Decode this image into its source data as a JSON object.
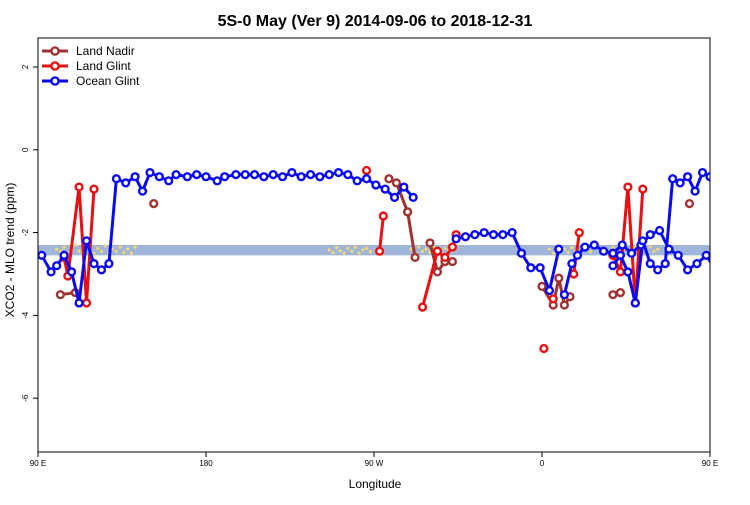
{
  "chart_data": {
    "type": "line",
    "title": "5S-0 May (Ver 9)   2014-09-06 to 2018-12-31",
    "xlabel": "Longitude",
    "ylabel": "XCO2 - MLO trend (ppm)",
    "xlim": [
      90,
      450
    ],
    "ylim": [
      -7.3,
      2.7
    ],
    "x_ticks": [
      {
        "value": 90,
        "label": "90 E"
      },
      {
        "value": 180,
        "label": "180"
      },
      {
        "value": 270,
        "label": "90 W"
      },
      {
        "value": 360,
        "label": "0"
      },
      {
        "value": 450,
        "label": "90 E"
      }
    ],
    "y_ticks": [
      {
        "value": 2,
        "label": "2"
      },
      {
        "value": 0,
        "label": "0"
      },
      {
        "value": -2,
        "label": "-2"
      },
      {
        "value": -4,
        "label": "-4"
      },
      {
        "value": -6,
        "label": "-6"
      }
    ],
    "legend_position": "top-left",
    "band": {
      "y_low": -2.55,
      "y_high": -2.3,
      "color": "#9fb6d8"
    },
    "background_points_color": "#f5d774",
    "background_points": [
      [
        100,
        -2.4
      ],
      [
        102,
        -2.45
      ],
      [
        104,
        -2.35
      ],
      [
        106,
        -2.5
      ],
      [
        108,
        -2.4
      ],
      [
        110,
        -2.3
      ],
      [
        112,
        -2.45
      ],
      [
        114,
        -2.5
      ],
      [
        116,
        -2.35
      ],
      [
        118,
        -2.42
      ],
      [
        120,
        -2.5
      ],
      [
        122,
        -2.38
      ],
      [
        124,
        -2.45
      ],
      [
        126,
        -2.32
      ],
      [
        128,
        -2.5
      ],
      [
        130,
        -2.4
      ],
      [
        132,
        -2.45
      ],
      [
        134,
        -2.35
      ],
      [
        136,
        -2.48
      ],
      [
        138,
        -2.4
      ],
      [
        140,
        -2.5
      ],
      [
        142,
        -2.35
      ],
      [
        246,
        -2.42
      ],
      [
        248,
        -2.48
      ],
      [
        250,
        -2.36
      ],
      [
        252,
        -2.44
      ],
      [
        254,
        -2.5
      ],
      [
        256,
        -2.38
      ],
      [
        258,
        -2.45
      ],
      [
        260,
        -2.35
      ],
      [
        262,
        -2.5
      ],
      [
        264,
        -2.42
      ],
      [
        266,
        -2.38
      ],
      [
        268,
        -2.46
      ],
      [
        290,
        -2.4
      ],
      [
        292,
        -2.5
      ],
      [
        294,
        -2.35
      ],
      [
        296,
        -2.45
      ],
      [
        298,
        -2.4
      ],
      [
        300,
        -2.48
      ],
      [
        302,
        -2.36
      ],
      [
        304,
        -2.44
      ],
      [
        306,
        -2.5
      ],
      [
        308,
        -2.38
      ],
      [
        310,
        -2.42
      ],
      [
        364,
        -2.4
      ],
      [
        366,
        -2.5
      ],
      [
        368,
        -2.35
      ],
      [
        370,
        -2.45
      ],
      [
        372,
        -2.4
      ],
      [
        374,
        -2.48
      ],
      [
        376,
        -2.36
      ],
      [
        378,
        -2.44
      ],
      [
        380,
        -2.5
      ],
      [
        382,
        -2.38
      ],
      [
        384,
        -2.42
      ],
      [
        386,
        -2.46
      ],
      [
        388,
        -2.36
      ],
      [
        394,
        -2.4
      ],
      [
        396,
        -2.48
      ],
      [
        398,
        -2.36
      ],
      [
        400,
        -2.44
      ],
      [
        402,
        -2.5
      ],
      [
        404,
        -2.38
      ],
      [
        406,
        -2.42
      ],
      [
        408,
        -2.46
      ],
      [
        410,
        -2.35
      ],
      [
        412,
        -2.45
      ],
      [
        414,
        -2.4
      ],
      [
        416,
        -2.5
      ],
      [
        418,
        -2.35
      ],
      [
        420,
        -2.45
      ],
      [
        422,
        -2.4
      ]
    ],
    "series": [
      {
        "name": "Land Nadir",
        "color": "#a03232",
        "segments": [
          [
            [
              102,
              -3.5
            ],
            [
              110,
              -3.45
            ]
          ],
          [
            [
              152,
              -1.3
            ]
          ],
          [
            [
              278,
              -0.7
            ],
            [
              282,
              -0.8
            ],
            [
              288,
              -1.5
            ]
          ],
          [
            [
              288,
              -1.5
            ],
            [
              292,
              -2.6
            ]
          ],
          [
            [
              300,
              -2.25
            ],
            [
              304,
              -2.95
            ],
            [
              308,
              -2.7
            ],
            [
              312,
              -2.7
            ]
          ],
          [
            [
              360,
              -3.3
            ],
            [
              366,
              -3.75
            ],
            [
              369,
              -3.1
            ],
            [
              372,
              -3.75
            ],
            [
              375,
              -3.55
            ]
          ],
          [
            [
              398,
              -3.5
            ],
            [
              402,
              -3.45
            ]
          ],
          [
            [
              439,
              -1.3
            ]
          ]
        ]
      },
      {
        "name": "Land Glint",
        "color": "#e81010",
        "segments": [
          [
            [
              104,
              -2.6
            ],
            [
              106,
              -3.05
            ],
            [
              112,
              -0.9
            ],
            [
              116,
              -3.7
            ],
            [
              120,
              -0.95
            ]
          ],
          [
            [
              266,
              -0.5
            ]
          ],
          [
            [
              273,
              -2.45
            ],
            [
              275,
              -1.6
            ]
          ],
          [
            [
              296,
              -3.8
            ],
            [
              304,
              -2.45
            ],
            [
              308,
              -2.6
            ],
            [
              312,
              -2.35
            ],
            [
              314,
              -2.05
            ]
          ],
          [
            [
              361,
              -4.8
            ]
          ],
          [
            [
              366,
              -3.6
            ]
          ],
          [
            [
              377,
              -3.0
            ],
            [
              380,
              -2.0
            ]
          ],
          [
            [
              398,
              -2.55
            ],
            [
              402,
              -2.95
            ],
            [
              406,
              -0.9
            ],
            [
              410,
              -3.7
            ],
            [
              414,
              -0.95
            ]
          ]
        ]
      },
      {
        "name": "Ocean Glint",
        "color": "#0a0af0",
        "segments": [
          [
            [
              92,
              -2.55
            ],
            [
              97,
              -2.95
            ],
            [
              100,
              -2.8
            ],
            [
              104,
              -2.55
            ],
            [
              108,
              -2.95
            ],
            [
              112,
              -3.7
            ],
            [
              116,
              -2.2
            ],
            [
              120,
              -2.75
            ],
            [
              124,
              -2.9
            ],
            [
              128,
              -2.75
            ],
            [
              132,
              -0.7
            ],
            [
              137,
              -0.8
            ],
            [
              142,
              -0.65
            ],
            [
              146,
              -1.0
            ],
            [
              150,
              -0.55
            ],
            [
              155,
              -0.65
            ],
            [
              160,
              -0.75
            ],
            [
              164,
              -0.6
            ],
            [
              170,
              -0.65
            ],
            [
              175,
              -0.6
            ],
            [
              180,
              -0.65
            ],
            [
              186,
              -0.75
            ],
            [
              190,
              -0.65
            ],
            [
              196,
              -0.6
            ],
            [
              201,
              -0.6
            ],
            [
              206,
              -0.6
            ],
            [
              211,
              -0.65
            ],
            [
              216,
              -0.6
            ],
            [
              221,
              -0.65
            ],
            [
              226,
              -0.55
            ],
            [
              231,
              -0.65
            ],
            [
              236,
              -0.6
            ],
            [
              241,
              -0.65
            ],
            [
              246,
              -0.6
            ],
            [
              251,
              -0.55
            ],
            [
              256,
              -0.6
            ],
            [
              261,
              -0.75
            ],
            [
              266,
              -0.7
            ],
            [
              271,
              -0.85
            ],
            [
              276,
              -0.95
            ],
            [
              281,
              -1.15
            ],
            [
              286,
              -0.9
            ],
            [
              291,
              -1.15
            ]
          ],
          [
            [
              314,
              -2.15
            ],
            [
              319,
              -2.1
            ],
            [
              324,
              -2.05
            ],
            [
              329,
              -2.0
            ],
            [
              334,
              -2.05
            ],
            [
              339,
              -2.05
            ],
            [
              344,
              -2.0
            ],
            [
              349,
              -2.5
            ],
            [
              354,
              -2.85
            ],
            [
              359,
              -2.85
            ],
            [
              364,
              -3.4
            ],
            [
              369,
              -2.4
            ]
          ],
          [
            [
              372,
              -3.5
            ],
            [
              376,
              -2.75
            ],
            [
              379,
              -2.55
            ],
            [
              383,
              -2.35
            ],
            [
              388,
              -2.3
            ],
            [
              393,
              -2.45
            ],
            [
              398,
              -2.5
            ],
            [
              403,
              -2.3
            ],
            [
              408,
              -2.5
            ],
            [
              413,
              -2.3
            ],
            [
              418,
              -2.05
            ],
            [
              423,
              -1.95
            ],
            [
              428,
              -2.4
            ],
            [
              433,
              -2.55
            ],
            [
              438,
              -2.9
            ],
            [
              443,
              -2.75
            ],
            [
              448,
              -2.55
            ],
            [
              453,
              -2.9
            ]
          ],
          [
            [
              398,
              -2.8
            ],
            [
              402,
              -2.55
            ],
            [
              406,
              -2.95
            ],
            [
              410,
              -3.7
            ],
            [
              414,
              -2.2
            ],
            [
              418,
              -2.75
            ],
            [
              422,
              -2.9
            ],
            [
              426,
              -2.75
            ],
            [
              430,
              -0.7
            ],
            [
              434,
              -0.8
            ],
            [
              438,
              -0.65
            ],
            [
              442,
              -1.0
            ],
            [
              446,
              -0.55
            ],
            [
              450,
              -0.65
            ]
          ]
        ]
      }
    ]
  }
}
